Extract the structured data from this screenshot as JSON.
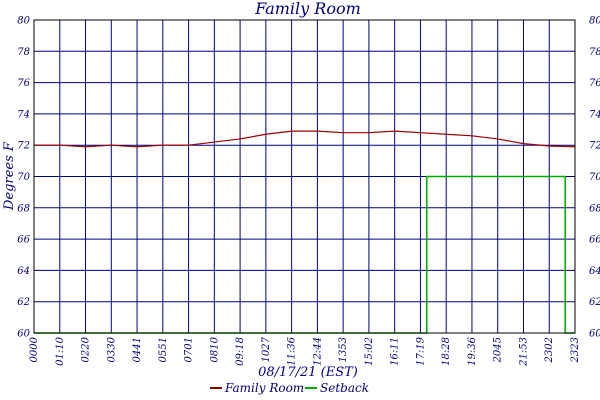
{
  "chart_data": {
    "type": "line",
    "title": "Family Room",
    "ylabel": "Degrees F",
    "xlabel": "08/17/21 (EST)",
    "ylim": [
      60,
      80
    ],
    "yticks": [
      60,
      62,
      64,
      66,
      68,
      70,
      72,
      74,
      76,
      78,
      80
    ],
    "xticks": [
      "0000",
      "01:10",
      "0220",
      "0330",
      "0441",
      "0551",
      "0701",
      "0810",
      "09:18",
      "1027",
      "11:36",
      "12:44",
      "1353",
      "15:02",
      "16:11",
      "17:19",
      "18:28",
      "19:36",
      "2045",
      "21:53",
      "2302",
      "2323"
    ],
    "grid": true,
    "legend_position": "bottom",
    "series": [
      {
        "name": "Family Room",
        "color": "#990000",
        "x": [
          "0000",
          "01:10",
          "0220",
          "0330",
          "0441",
          "0551",
          "0701",
          "0810",
          "09:18",
          "1027",
          "11:36",
          "12:44",
          "1353",
          "15:02",
          "16:11",
          "17:19",
          "18:28",
          "19:36",
          "2045",
          "21:53",
          "2302",
          "2323"
        ],
        "values": [
          72.0,
          72.0,
          71.9,
          72.0,
          71.9,
          72.0,
          72.0,
          72.2,
          72.4,
          72.7,
          72.9,
          72.9,
          72.8,
          72.8,
          72.9,
          72.8,
          72.7,
          72.6,
          72.4,
          72.1,
          71.95,
          71.9
        ]
      },
      {
        "name": "Setback",
        "color": "#00aa00",
        "x": [
          "0000",
          "17:19",
          "17:36",
          "18:28",
          "2302",
          "2315",
          "2323"
        ],
        "values": [
          60,
          60,
          70,
          70,
          70,
          60,
          60
        ]
      }
    ]
  }
}
